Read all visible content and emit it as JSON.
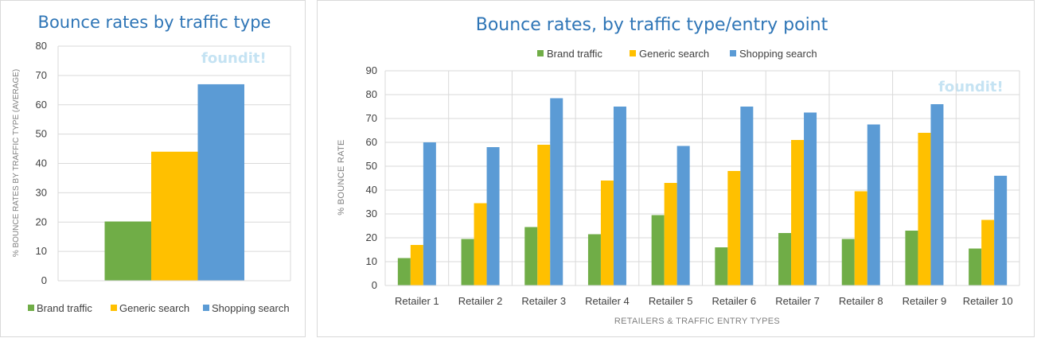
{
  "colors": {
    "brand": "#70ad47",
    "generic": "#ffc000",
    "shopping": "#5b9bd5",
    "title": "#2e75b6"
  },
  "watermark": "foundit!",
  "chart_data": [
    {
      "type": "bar",
      "title": "Bounce rates by traffic type",
      "xlabel": "",
      "ylabel": "% BOUNCE RATES BY TRAFFIC TYPE (AVERAGE)",
      "ylim": [
        0,
        80
      ],
      "yticks": [
        "0",
        "10",
        "20",
        "30",
        "40",
        "50",
        "60",
        "70",
        "80"
      ],
      "categories": [
        ""
      ],
      "series": [
        {
          "name": "Brand traffic",
          "values": [
            20.2
          ]
        },
        {
          "name": "Generic search",
          "values": [
            44
          ]
        },
        {
          "name": "Shopping search",
          "values": [
            67
          ]
        }
      ],
      "legend": "bottom"
    },
    {
      "type": "bar",
      "title": "Bounce rates, by traffic type/entry point",
      "xlabel": "RETAILERS & TRAFFIC ENTRY TYPES",
      "ylabel": "% BOUNCE RATE",
      "ylim": [
        0,
        90
      ],
      "yticks": [
        "0",
        "10",
        "20",
        "30",
        "40",
        "50",
        "60",
        "70",
        "80",
        "90"
      ],
      "categories": [
        "Retailer 1",
        "Retailer 2",
        "Retailer 3",
        "Retailer 4",
        "Retailer 5",
        "Retailer 6",
        "Retailer 7",
        "Retailer 8",
        "Retailer 9",
        "Retailer 10"
      ],
      "series": [
        {
          "name": "Brand traffic",
          "values": [
            11.5,
            19.5,
            24.5,
            21.5,
            29.5,
            16,
            22,
            19.5,
            23,
            15.5
          ]
        },
        {
          "name": "Generic search",
          "values": [
            17,
            34.5,
            59,
            44,
            43,
            48,
            61,
            39.5,
            64,
            27.5
          ]
        },
        {
          "name": "Shopping search",
          "values": [
            60,
            58,
            78.5,
            75,
            58.5,
            75,
            72.5,
            67.5,
            76,
            46
          ]
        }
      ],
      "legend": "top"
    }
  ]
}
